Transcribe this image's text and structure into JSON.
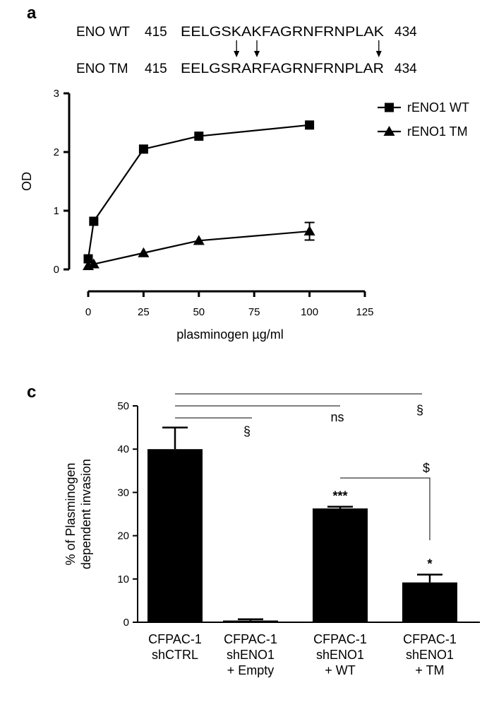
{
  "panel_a": {
    "letter": "a",
    "sequences": [
      {
        "name": "ENO WT",
        "start": "415",
        "seq": "EELGSKAKFAGRNFRNPLAK",
        "end": "434"
      },
      {
        "name": "ENO TM",
        "start": "415",
        "seq": "EELGSRARFAGRNFRNPLAR",
        "end": "434"
      }
    ],
    "mutation_positions": [
      6,
      8,
      20
    ]
  },
  "panel_c": {
    "letter": "c"
  },
  "chart_data": [
    {
      "type": "line",
      "xlabel": "plasminogen µg/ml",
      "ylabel": "OD",
      "xlim": [
        0,
        125
      ],
      "ylim": [
        0,
        3
      ],
      "xticks": [
        0,
        25,
        50,
        75,
        100,
        125
      ],
      "yticks": [
        0,
        1,
        2,
        3
      ],
      "grid": false,
      "legend": "top-right",
      "series": [
        {
          "name": "rENO1 WT",
          "marker": "square",
          "x": [
            0,
            2.5,
            25,
            50,
            100
          ],
          "y": [
            0.18,
            0.82,
            2.05,
            2.27,
            2.46
          ],
          "err": [
            0,
            0,
            0,
            0,
            0
          ]
        },
        {
          "name": "rENO1 TM",
          "marker": "triangle",
          "x": [
            0,
            2.5,
            25,
            50,
            100
          ],
          "y": [
            0.06,
            0.09,
            0.28,
            0.49,
            0.65
          ],
          "err": [
            0,
            0,
            0,
            0,
            0.15
          ]
        }
      ]
    },
    {
      "type": "bar",
      "ylabel": "% of Plasminogen dependent invasion",
      "ylim": [
        0,
        50
      ],
      "yticks": [
        0,
        10,
        20,
        30,
        40,
        50
      ],
      "grid": false,
      "categories": [
        [
          "CFPAC-1",
          "shCTRL"
        ],
        [
          "CFPAC-1",
          "shENO1",
          "+ Empty"
        ],
        [
          "CFPAC-1",
          "shENO1",
          "+ WT"
        ],
        [
          "CFPAC-1",
          "shENO1",
          "+ TM"
        ]
      ],
      "values": [
        40,
        0.4,
        26.3,
        9.2
      ],
      "errors": [
        5,
        0.3,
        0.4,
        1.8
      ],
      "bar_labels": [
        "",
        "",
        "***",
        "*"
      ],
      "comparisons": [
        {
          "from": 0,
          "to": 1,
          "label": "§"
        },
        {
          "from": 0,
          "to": 2,
          "label": "ns"
        },
        {
          "from": 0,
          "to": 3,
          "label": "§"
        },
        {
          "from": 2,
          "to": 3,
          "label": "$"
        }
      ],
      "color": "#000000"
    }
  ]
}
